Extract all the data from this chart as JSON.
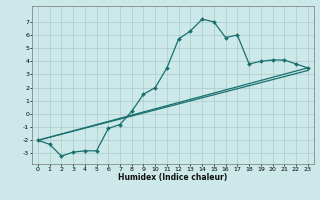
{
  "xlabel": "Humidex (Indice chaleur)",
  "xlim": [
    -0.5,
    23.5
  ],
  "ylim": [
    -3.8,
    8.2
  ],
  "yticks": [
    -3,
    -2,
    -1,
    0,
    1,
    2,
    3,
    4,
    5,
    6,
    7
  ],
  "xticks": [
    0,
    1,
    2,
    3,
    4,
    5,
    6,
    7,
    8,
    9,
    10,
    11,
    12,
    13,
    14,
    15,
    16,
    17,
    18,
    19,
    20,
    21,
    22,
    23
  ],
  "bg_color": "#cce8e8",
  "line_color": "#1a7070",
  "grid_color": "#aacccc",
  "line1_x": [
    0,
    1,
    2,
    3,
    4,
    5,
    6,
    7,
    8,
    9,
    10,
    11,
    12,
    13,
    14,
    15,
    16,
    17,
    18,
    19,
    20,
    21,
    22,
    23
  ],
  "line1_y": [
    -2.0,
    -2.3,
    -3.2,
    -2.9,
    -2.8,
    -2.8,
    -1.1,
    -0.8,
    0.2,
    1.5,
    2.0,
    3.5,
    5.7,
    6.3,
    7.2,
    7.0,
    5.8,
    6.0,
    3.8,
    4.0,
    4.1,
    4.1,
    3.8,
    3.5
  ],
  "line2_x": [
    0,
    23
  ],
  "line2_y": [
    -2.0,
    3.5
  ],
  "line3_x": [
    0,
    23
  ],
  "line3_y": [
    -2.0,
    3.3
  ],
  "tick_fontsize": 4.5,
  "xlabel_fontsize": 5.5
}
